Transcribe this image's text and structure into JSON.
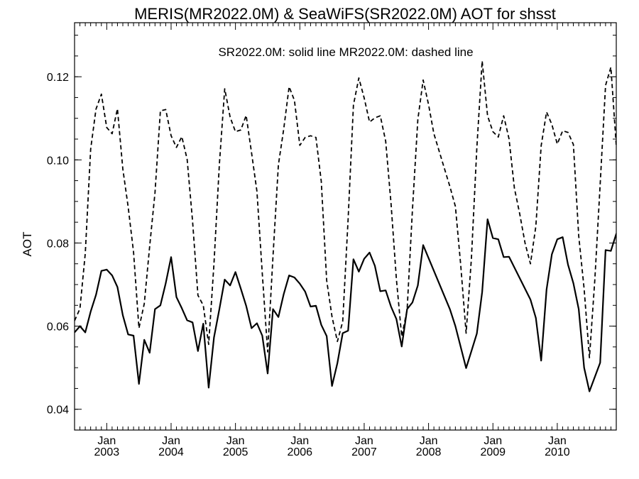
{
  "chart_data": {
    "type": "line",
    "title": "MERIS(MR2022.0M) & SeaWiFS(SR2022.0M)  AOT for shsst",
    "annotation": "SR2022.0M: solid line   MR2022.0M: dashed line",
    "ylabel": "AOT",
    "xlabel": "",
    "xlim": [
      "2002-07",
      "2010-12"
    ],
    "ylim": [
      0.035,
      0.133
    ],
    "yticks": [
      0.04,
      0.06,
      0.08,
      0.1,
      0.12
    ],
    "ytick_labels": [
      "0.04",
      "0.06",
      "0.08",
      "0.10",
      "0.12"
    ],
    "xticks": [
      {
        "month": "Jan",
        "year": "2003",
        "date": "2003-01"
      },
      {
        "month": "Jan",
        "year": "2004",
        "date": "2004-01"
      },
      {
        "month": "Jan",
        "year": "2005",
        "date": "2005-01"
      },
      {
        "month": "Jan",
        "year": "2006",
        "date": "2006-01"
      },
      {
        "month": "Jan",
        "year": "2007",
        "date": "2007-01"
      },
      {
        "month": "Jan",
        "year": "2008",
        "date": "2008-01"
      },
      {
        "month": "Jan",
        "year": "2009",
        "date": "2009-01"
      },
      {
        "month": "Jan",
        "year": "2010",
        "date": "2010-01"
      }
    ],
    "grid": false,
    "series": [
      {
        "name": "SR2022.0M",
        "style": "solid",
        "x": [
          "2002-07",
          "2002-08",
          "2002-09",
          "2002-10",
          "2002-11",
          "2002-12",
          "2003-01",
          "2003-02",
          "2003-03",
          "2003-04",
          "2003-05",
          "2003-06",
          "2003-07",
          "2003-08",
          "2003-09",
          "2003-10",
          "2003-11",
          "2003-12",
          "2004-01",
          "2004-02",
          "2004-03",
          "2004-04",
          "2004-05",
          "2004-06",
          "2004-07",
          "2004-08",
          "2004-09",
          "2004-10",
          "2004-11",
          "2004-12",
          "2005-01",
          "2005-02",
          "2005-03",
          "2005-04",
          "2005-05",
          "2005-06",
          "2005-07",
          "2005-08",
          "2005-09",
          "2005-10",
          "2005-11",
          "2005-12",
          "2006-01",
          "2006-02",
          "2006-03",
          "2006-04",
          "2006-05",
          "2006-06",
          "2006-07",
          "2006-08",
          "2006-09",
          "2006-10",
          "2006-11",
          "2006-12",
          "2007-01",
          "2007-02",
          "2007-03",
          "2007-04",
          "2007-05",
          "2007-06",
          "2007-07",
          "2007-08",
          "2007-09",
          "2007-10",
          "2007-11",
          "2007-12",
          "2008-05",
          "2008-06",
          "2008-08",
          "2008-09",
          "2008-10",
          "2008-11",
          "2008-12",
          "2009-01",
          "2009-02",
          "2009-03",
          "2009-04",
          "2009-08",
          "2009-09",
          "2009-10",
          "2009-11",
          "2009-12",
          "2010-01",
          "2010-02",
          "2010-03",
          "2010-04",
          "2010-05",
          "2010-06",
          "2010-07",
          "2010-09",
          "2010-10",
          "2010-11",
          "2010-12",
          "2011-01"
        ],
        "y": [
          0.0585,
          0.06,
          0.0585,
          0.0635,
          0.0675,
          0.0733,
          0.0736,
          0.0722,
          0.0694,
          0.0626,
          0.058,
          0.0577,
          0.0461,
          0.0567,
          0.0536,
          0.0641,
          0.065,
          0.0703,
          0.0766,
          0.067,
          0.0643,
          0.0614,
          0.0609,
          0.054,
          0.0606,
          0.0452,
          0.0573,
          0.0641,
          0.0712,
          0.0698,
          0.073,
          0.069,
          0.0649,
          0.0595,
          0.0607,
          0.0577,
          0.0486,
          0.0641,
          0.0622,
          0.0677,
          0.0722,
          0.0717,
          0.0702,
          0.0683,
          0.0647,
          0.0649,
          0.0603,
          0.0576,
          0.0456,
          0.0511,
          0.0583,
          0.0589,
          0.0761,
          0.0731,
          0.0762,
          0.0777,
          0.0745,
          0.0684,
          0.0686,
          0.0647,
          0.0617,
          0.0551,
          0.0641,
          0.0657,
          0.0698,
          0.0795,
          0.064,
          0.06,
          0.0499,
          0.054,
          0.0582,
          0.0682,
          0.0857,
          0.0812,
          0.0809,
          0.0766,
          0.0767,
          0.0664,
          0.062,
          0.0517,
          0.0688,
          0.0773,
          0.0809,
          0.0814,
          0.0748,
          0.0703,
          0.0641,
          0.05,
          0.0443,
          0.0512,
          0.0783,
          0.0781,
          0.0822,
          0.0813
        ]
      },
      {
        "name": "MR2022.0M",
        "style": "dashed",
        "x": [
          "2002-07",
          "2002-08",
          "2002-09",
          "2002-10",
          "2002-11",
          "2002-12",
          "2003-01",
          "2003-02",
          "2003-03",
          "2003-04",
          "2003-05",
          "2003-06",
          "2003-07",
          "2003-08",
          "2003-09",
          "2003-10",
          "2003-11",
          "2003-12",
          "2004-01",
          "2004-02",
          "2004-03",
          "2004-04",
          "2004-05",
          "2004-06",
          "2004-07",
          "2004-08",
          "2004-09",
          "2004-10",
          "2004-11",
          "2004-12",
          "2005-01",
          "2005-02",
          "2005-03",
          "2005-04",
          "2005-05",
          "2005-06",
          "2005-07",
          "2005-08",
          "2005-09",
          "2005-10",
          "2005-11",
          "2005-12",
          "2006-01",
          "2006-02",
          "2006-03",
          "2006-04",
          "2006-05",
          "2006-06",
          "2006-07",
          "2006-08",
          "2006-09",
          "2006-10",
          "2006-11",
          "2006-12",
          "2007-01",
          "2007-02",
          "2007-03",
          "2007-04",
          "2007-05",
          "2007-06",
          "2007-07",
          "2007-08",
          "2007-09",
          "2007-10",
          "2007-11",
          "2007-12",
          "2008-01",
          "2008-02",
          "2008-05",
          "2008-06",
          "2008-07",
          "2008-08",
          "2008-09",
          "2008-10",
          "2008-11",
          "2008-12",
          "2009-01",
          "2009-02",
          "2009-03",
          "2009-04",
          "2009-05",
          "2009-06",
          "2009-07",
          "2009-08",
          "2009-09",
          "2009-10",
          "2009-11",
          "2009-12",
          "2010-01",
          "2010-02",
          "2010-03",
          "2010-04",
          "2010-05",
          "2010-06",
          "2010-07",
          "2010-08",
          "2010-09",
          "2010-10",
          "2010-11",
          "2010-12",
          "2011-01"
        ],
        "y": [
          0.0613,
          0.0642,
          0.0775,
          0.1026,
          0.1122,
          0.1158,
          0.1078,
          0.1063,
          0.1123,
          0.0978,
          0.0887,
          0.0778,
          0.0595,
          0.0654,
          0.0792,
          0.0921,
          0.1118,
          0.1121,
          0.1058,
          0.103,
          0.1056,
          0.1001,
          0.0853,
          0.0674,
          0.065,
          0.0556,
          0.0751,
          0.099,
          0.1171,
          0.1103,
          0.1068,
          0.1072,
          0.1107,
          0.1017,
          0.0924,
          0.0727,
          0.0538,
          0.0768,
          0.0988,
          0.1074,
          0.1176,
          0.1143,
          0.1035,
          0.1054,
          0.1058,
          0.1054,
          0.0948,
          0.071,
          0.0623,
          0.0563,
          0.0611,
          0.0857,
          0.1132,
          0.1197,
          0.1149,
          0.1091,
          0.1101,
          0.1106,
          0.1045,
          0.0896,
          0.0713,
          0.0575,
          0.0639,
          0.088,
          0.1097,
          0.1192,
          0.1133,
          0.1063,
          0.0935,
          0.0888,
          0.0747,
          0.0583,
          0.0764,
          0.1029,
          0.1238,
          0.1106,
          0.1068,
          0.1055,
          0.1106,
          0.1051,
          0.0932,
          0.087,
          0.0799,
          0.075,
          0.084,
          0.1034,
          0.1115,
          0.1085,
          0.1038,
          0.107,
          0.1066,
          0.1037,
          0.0817,
          0.069,
          0.0524,
          0.0712,
          0.0941,
          0.1179,
          0.1223,
          0.1034,
          0.0993
        ]
      }
    ]
  }
}
